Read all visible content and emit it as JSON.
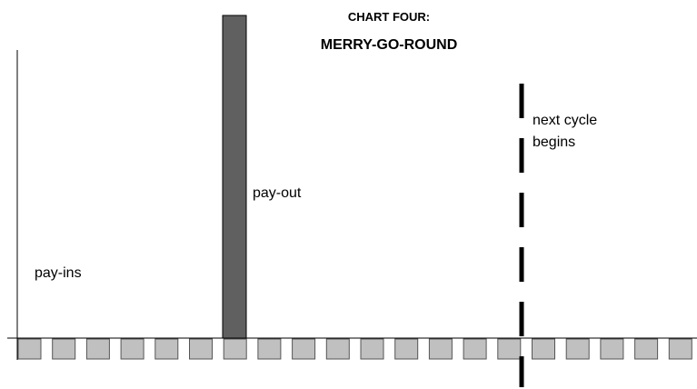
{
  "title": {
    "line1": "CHART FOUR:",
    "line2": "MERRY-GO-ROUND"
  },
  "labels": {
    "pay_ins": "pay-ins",
    "pay_out": "pay-out",
    "next_cycle": [
      "next cycle",
      "begins"
    ]
  }
}
